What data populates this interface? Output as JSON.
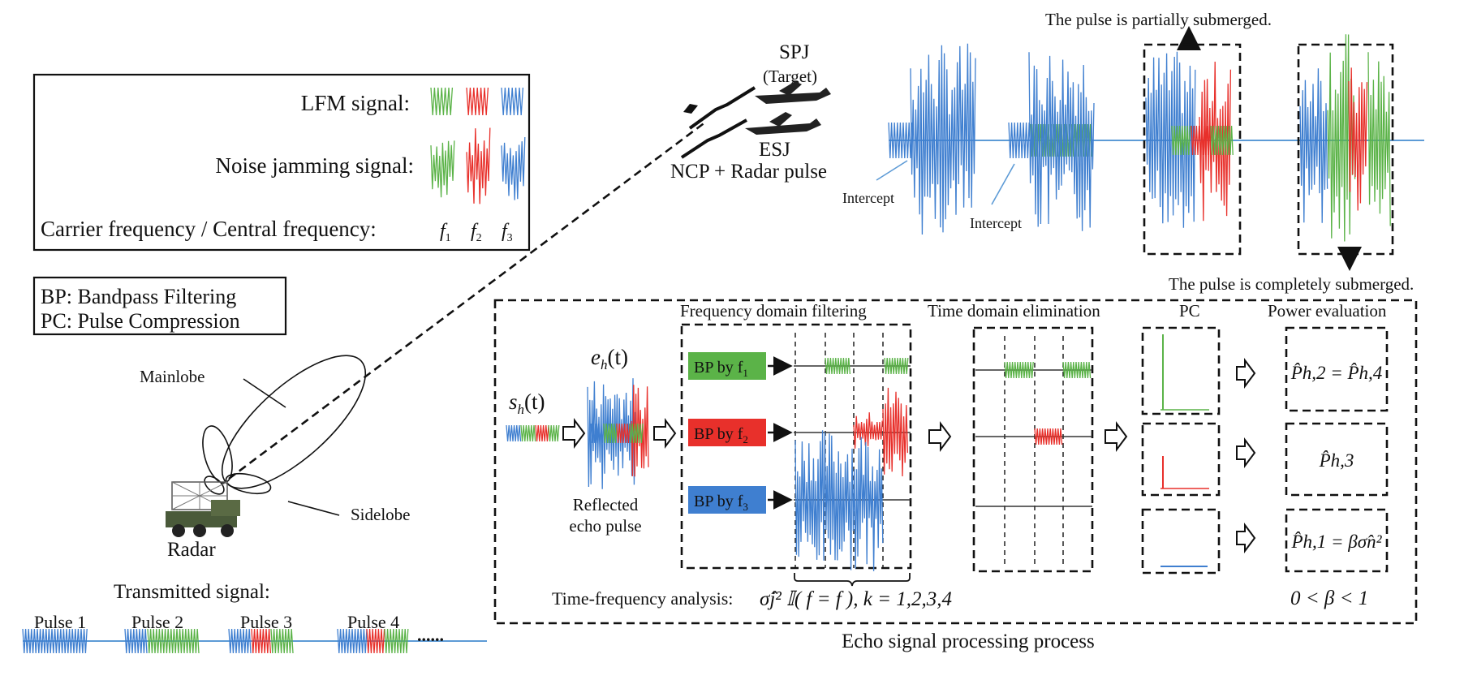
{
  "colors": {
    "green": "#5bb348",
    "red": "#e8302b",
    "blue": "#3f7fd0",
    "line": "#5d9bd6",
    "ink": "#111111"
  },
  "legend": {
    "lfm_label": "LFM signal:",
    "noise_label": "Noise jamming signal:",
    "carrier_label": "Carrier frequency / Central frequency:",
    "f1": "f",
    "f1_sub": "1",
    "f2": "f",
    "f2_sub": "2",
    "f3": "f",
    "f3_sub": "3"
  },
  "abbrev": {
    "bp": "BP: Bandpass Filtering",
    "pc": "PC: Pulse Compression"
  },
  "radar": {
    "mainlobe": "Mainlobe",
    "sidelobe": "Sidelobe",
    "label": "Radar"
  },
  "transmitted": {
    "title": "Transmitted signal:",
    "pulses": [
      "Pulse 1",
      "Pulse 2",
      "Pulse 3",
      "Pulse 4"
    ],
    "ellipsis": "......"
  },
  "targets": {
    "spj": "SPJ",
    "target": "(Target)",
    "esj": "ESJ",
    "ncp": "NCP + Radar pulse"
  },
  "top_panel": {
    "partial": "The pulse is partially submerged.",
    "complete": "The pulse is completely submerged.",
    "intercept": "Intercept"
  },
  "process": {
    "s_h": "s",
    "s_h_sub": "h",
    "s_h_arg": "(t)",
    "e_h": "e",
    "e_h_sub": "h",
    "e_h_arg": "(t)",
    "reflected_1": "Reflected",
    "reflected_2": "echo pulse",
    "freq_filtering": "Frequency domain filtering",
    "time_elim": "Time domain elimination",
    "pc": "PC",
    "power_eval": "Power evaluation",
    "bp1": "BP by f",
    "bp1_sub": "1",
    "bp2": "BP by f",
    "bp2_sub": "2",
    "bp3": "BP by f",
    "bp3_sub": "3",
    "p_eq_1": "P̂h,2 = P̂h,4",
    "p_eq_2": "P̂h,3",
    "p_eq_3": "P̂h,1 = βσ̂n²",
    "tf_label": "Time-frequency analysis:",
    "tf_formula": "σ̂j² 𝕀( f = f ), k = 1,2,3,4",
    "beta_range": "0 < β < 1",
    "title": "Echo signal processing process"
  }
}
